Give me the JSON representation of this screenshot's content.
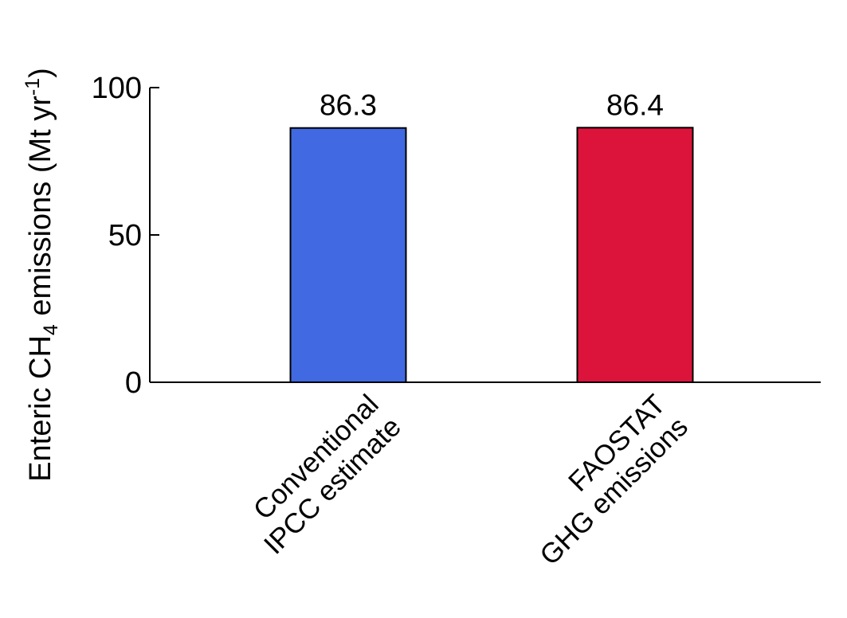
{
  "chart_data": {
    "type": "bar",
    "title": "",
    "xlabel": "",
    "ylabel": {
      "part1": "Enteric CH",
      "sub": "4",
      "part2": " emissions (Mt yr",
      "sup": "-1",
      "part3": ")"
    },
    "ylim": [
      0,
      100
    ],
    "yticks": [
      0,
      50,
      100
    ],
    "categories": [
      [
        "Conventional",
        "IPCC estimate"
      ],
      [
        "FAOSTAT",
        "GHG emissions"
      ]
    ],
    "values": [
      86.3,
      86.4
    ],
    "data_labels": [
      "86.3",
      "86.4"
    ],
    "colors": [
      "#4169E1",
      "#DC143C"
    ],
    "grid": false,
    "legend": "none"
  }
}
